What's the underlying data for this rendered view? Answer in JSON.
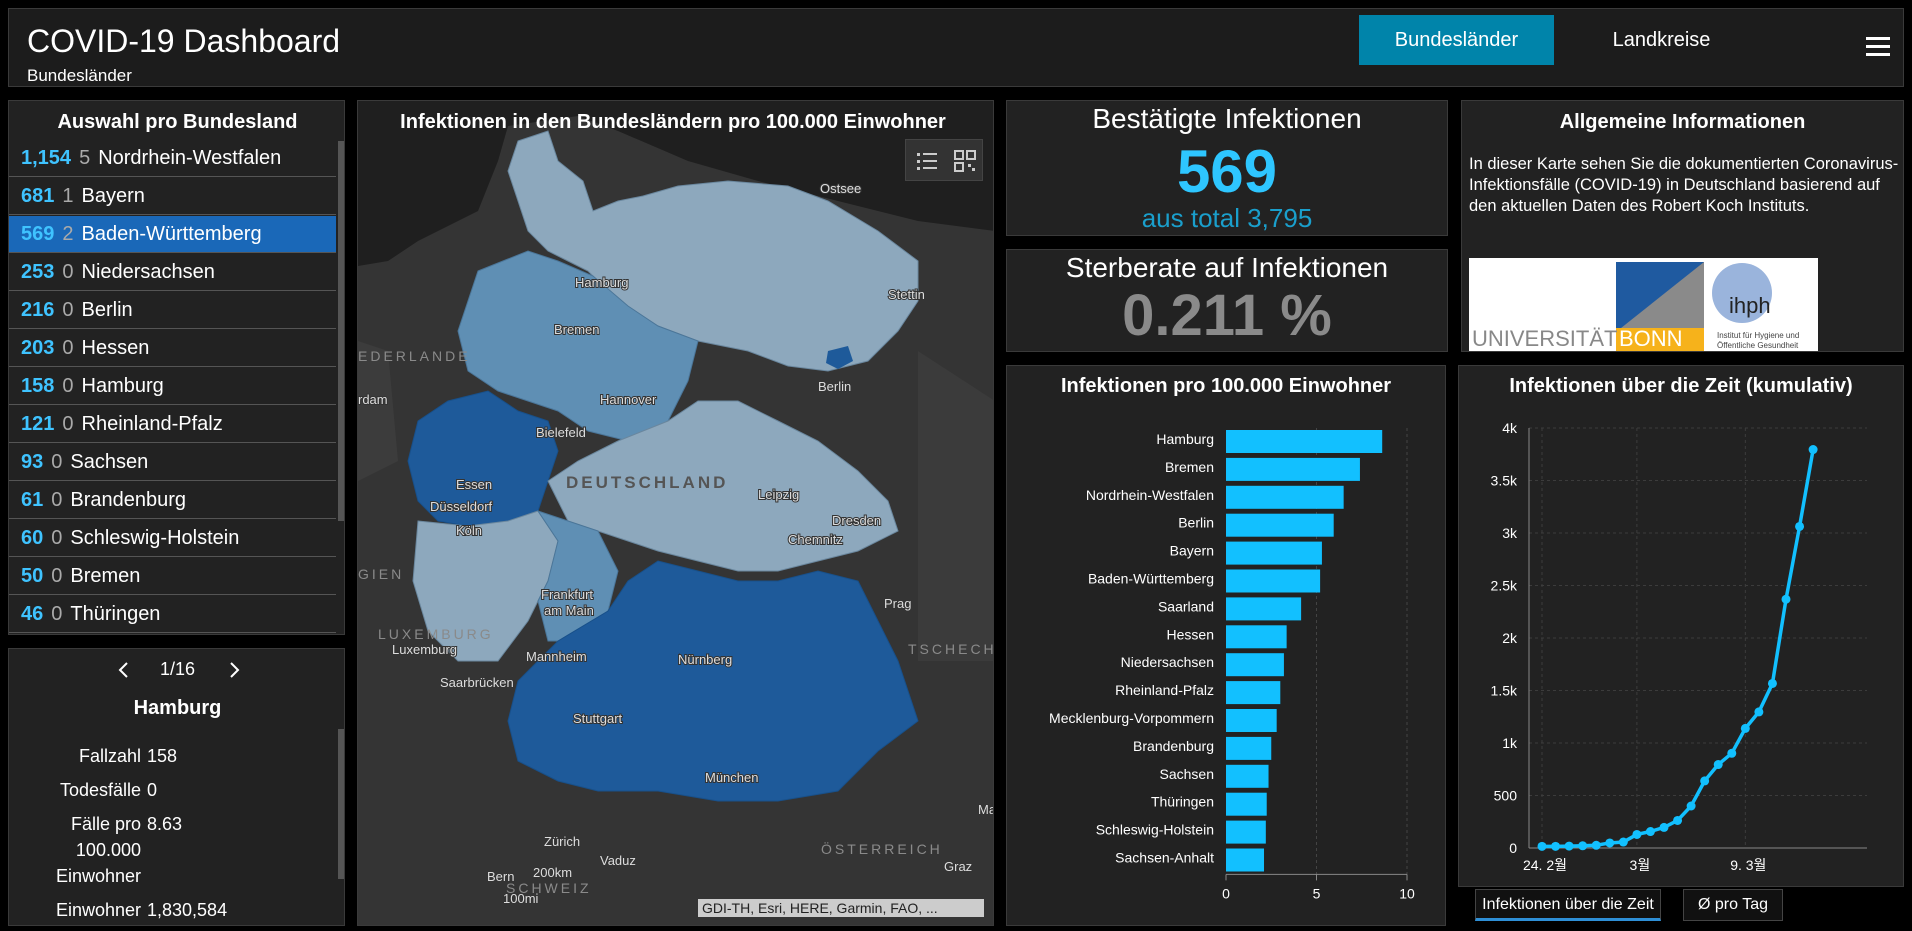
{
  "header": {
    "title": "COVID-19 Dashboard",
    "subtitle": "Bundesländer",
    "nav": [
      {
        "label": "Bundesländer",
        "active": true
      },
      {
        "label": "Landkreise",
        "active": false
      }
    ]
  },
  "list": {
    "title": "Auswahl pro Bundesland",
    "items": [
      {
        "cases": "1,154",
        "deaths": "5",
        "name": "Nordrhein-Westfalen"
      },
      {
        "cases": "681",
        "deaths": "1",
        "name": "Bayern"
      },
      {
        "cases": "569",
        "deaths": "2",
        "name": "Baden-Württemberg"
      },
      {
        "cases": "253",
        "deaths": "0",
        "name": "Niedersachsen"
      },
      {
        "cases": "216",
        "deaths": "0",
        "name": "Berlin"
      },
      {
        "cases": "203",
        "deaths": "0",
        "name": "Hessen"
      },
      {
        "cases": "158",
        "deaths": "0",
        "name": "Hamburg"
      },
      {
        "cases": "121",
        "deaths": "0",
        "name": "Rheinland-Pfalz"
      },
      {
        "cases": "93",
        "deaths": "0",
        "name": "Sachsen"
      },
      {
        "cases": "61",
        "deaths": "0",
        "name": "Brandenburg"
      },
      {
        "cases": "60",
        "deaths": "0",
        "name": "Schleswig-Holstein"
      },
      {
        "cases": "50",
        "deaths": "0",
        "name": "Bremen"
      },
      {
        "cases": "46",
        "deaths": "0",
        "name": "Thüringen"
      }
    ],
    "selected_name": "Baden-Württemberg"
  },
  "detail": {
    "pager": "1/16",
    "title": "Hamburg",
    "rows": [
      {
        "label": "Fallzahl",
        "value": "158"
      },
      {
        "label": "Todesfälle",
        "value": "0"
      },
      {
        "label_lines": [
          "Fälle pro",
          "100.000",
          "Einwohner"
        ],
        "value": "8.63"
      },
      {
        "label": "Einwohner",
        "value": "1,830,584"
      }
    ]
  },
  "map": {
    "title": "Infektionen in den Bundesländern pro 100.000 Einwohner",
    "attribution": "GDI-TH, Esri, HERE, Garmin, FAO, ...",
    "labels": {
      "ostsee": "Ostsee",
      "hamburg": "Hamburg",
      "stettin": "Stettin",
      "bremen": "Bremen",
      "niederlande": "EDERLANDE",
      "amsterdam": "rdam",
      "hannover": "Hannover",
      "berlin": "Berlin",
      "bielefeld": "Bielefeld",
      "deutschland": "DEUTSCHLAND",
      "essen": "Essen",
      "duesseldorf": "Düsseldorf",
      "leipzig": "Leipzig",
      "koeln": "Köln",
      "dresden": "Dresden",
      "chemnitz": "Chemnitz",
      "belgien": "GIEN",
      "frankfurt1": "Frankfurt",
      "frankfurt2": "am Main",
      "prag": "Prag",
      "luxemburg_cty": "LUXEMBURG",
      "luxemburg": "Luxemburg",
      "nuernberg": "Nürnberg",
      "tschechien": "TSCHECH",
      "mannheim": "Mannheim",
      "saarbruecken": "Saarbrücken",
      "stuttgart": "Stuttgart",
      "muenchen": "München",
      "ma": "Ma",
      "zuerich": "Zürich",
      "oesterreich": "ÖSTERREICH",
      "vaduz": "Vaduz",
      "graz": "Graz",
      "bern": "Bern",
      "schweiz": "SCHWEIZ",
      "scale_km": "200km",
      "scale_mi": "100mi"
    }
  },
  "kpi_cases": {
    "title": "Bestätigte Infektionen",
    "value": "569",
    "sub": "aus total 3,795"
  },
  "kpi_rate": {
    "title": "Sterberate auf Infektionen",
    "value": "0.211 %"
  },
  "info": {
    "title": "Allgemeine Informationen",
    "text": "In dieser Karte sehen Sie die dokumentierten Coronavirus-Infektionsfälle (COVID-19) in Deutschland basierend auf den aktuellen Daten des Robert Koch Instituts.",
    "logo_text1": "UNIVERSITÄT",
    "logo_text2": "BONN",
    "logo_text3": "ihph",
    "logo_text4": "Institut für Hygiene und",
    "logo_text5": "Öffentliche Gesundheit"
  },
  "bar_chart": {
    "title": "Infektionen pro 100.000 Einwohner",
    "type": "bar",
    "categories": [
      "Hamburg",
      "Bremen",
      "Nordrhein-Westfalen",
      "Berlin",
      "Bayern",
      "Baden-Württemberg",
      "Saarland",
      "Hessen",
      "Niedersachsen",
      "Rheinland-Pfalz",
      "Mecklenburg-Vorpommern",
      "Brandenburg",
      "Sachsen",
      "Thüringen",
      "Schleswig-Holstein",
      "Sachsen-Anhalt"
    ],
    "values": [
      8.63,
      7.4,
      6.5,
      5.95,
      5.3,
      5.2,
      4.15,
      3.35,
      3.2,
      3.0,
      2.8,
      2.5,
      2.35,
      2.25,
      2.2,
      2.1
    ],
    "xlim": [
      0,
      10
    ],
    "xticks": [
      "0",
      "5",
      "10"
    ]
  },
  "line_chart": {
    "title": "Infektionen über die Zeit (kumulativ)",
    "type": "line",
    "ylim": [
      0,
      4000
    ],
    "yticks": [
      "0",
      "500",
      "1k",
      "1.5k",
      "2k",
      "2.5k",
      "3k",
      "3.5k",
      "4k"
    ],
    "xticks": [
      "24. 2월",
      "3월",
      "9. 3월"
    ],
    "values": [
      16,
      16,
      18,
      21,
      26,
      48,
      57,
      129,
      157,
      196,
      262,
      400,
      639,
      795,
      902,
      1139,
      1296,
      1567,
      2369,
      3062,
      3795
    ]
  },
  "tabs": [
    {
      "label": "Infektionen über die Zeit"
    },
    {
      "label": "Ø pro Tag"
    }
  ]
}
